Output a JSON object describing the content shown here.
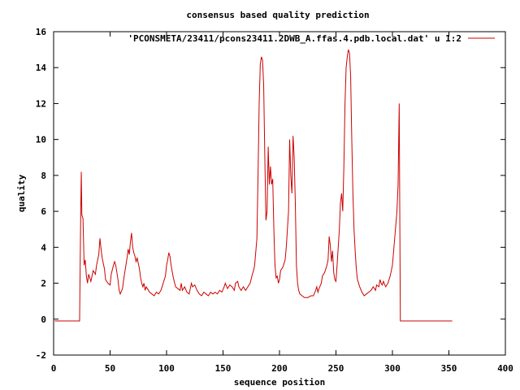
{
  "chart_data": {
    "type": "line",
    "title": "consensus based quality prediction",
    "xlabel": "sequence position",
    "ylabel": "quality",
    "xlim": [
      0,
      400
    ],
    "ylim": [
      -2,
      16
    ],
    "xticks": [
      0,
      50,
      100,
      150,
      200,
      250,
      300,
      350,
      400
    ],
    "yticks": [
      -2,
      0,
      2,
      4,
      6,
      8,
      10,
      12,
      14,
      16
    ],
    "grid": false,
    "legend_position": "top-right",
    "series": [
      {
        "name": "'PCONSMETA/23411/pcons23411.2DWB_A.ffas.4.pdb.local.dat' u 1:2",
        "color": "#cc0000",
        "points": [
          [
            1,
            -0.1
          ],
          [
            23,
            -0.1
          ],
          [
            24,
            6.0
          ],
          [
            24.5,
            8.2
          ],
          [
            25,
            5.8
          ],
          [
            26,
            5.6
          ],
          [
            27,
            3.0
          ],
          [
            28,
            3.3
          ],
          [
            29,
            2.4
          ],
          [
            30,
            2.0
          ],
          [
            31,
            2.5
          ],
          [
            32,
            2.3
          ],
          [
            33,
            2.1
          ],
          [
            35,
            2.7
          ],
          [
            37,
            2.5
          ],
          [
            38,
            3.0
          ],
          [
            40,
            3.6
          ],
          [
            41,
            4.5
          ],
          [
            42,
            3.9
          ],
          [
            43,
            3.4
          ],
          [
            45,
            2.8
          ],
          [
            46,
            2.2
          ],
          [
            48,
            2.0
          ],
          [
            50,
            1.9
          ],
          [
            51,
            2.5
          ],
          [
            53,
            3.0
          ],
          [
            54,
            3.2
          ],
          [
            55,
            3.0
          ],
          [
            57,
            2.2
          ],
          [
            58,
            1.6
          ],
          [
            59,
            1.4
          ],
          [
            61,
            1.7
          ],
          [
            62,
            2.2
          ],
          [
            64,
            3.0
          ],
          [
            65,
            3.4
          ],
          [
            66,
            3.9
          ],
          [
            67,
            3.6
          ],
          [
            68,
            4.3
          ],
          [
            69,
            4.8
          ],
          [
            70,
            4.0
          ],
          [
            71,
            3.7
          ],
          [
            72,
            3.5
          ],
          [
            73,
            3.2
          ],
          [
            74,
            3.4
          ],
          [
            76,
            2.8
          ],
          [
            77,
            2.3
          ],
          [
            78,
            2.0
          ],
          [
            79,
            1.8
          ],
          [
            80,
            2.0
          ],
          [
            81,
            1.6
          ],
          [
            82,
            1.8
          ],
          [
            83,
            1.7
          ],
          [
            85,
            1.5
          ],
          [
            87,
            1.4
          ],
          [
            89,
            1.3
          ],
          [
            91,
            1.5
          ],
          [
            93,
            1.4
          ],
          [
            95,
            1.6
          ],
          [
            97,
            2.0
          ],
          [
            99,
            2.4
          ],
          [
            100,
            3.0
          ],
          [
            101,
            3.3
          ],
          [
            102,
            3.7
          ],
          [
            103,
            3.5
          ],
          [
            104,
            3.0
          ],
          [
            106,
            2.3
          ],
          [
            108,
            1.8
          ],
          [
            110,
            1.7
          ],
          [
            112,
            1.6
          ],
          [
            113,
            2.0
          ],
          [
            114,
            1.6
          ],
          [
            116,
            1.8
          ],
          [
            118,
            1.5
          ],
          [
            120,
            1.4
          ],
          [
            121,
            1.7
          ],
          [
            122,
            2.0
          ],
          [
            123,
            1.8
          ],
          [
            125,
            1.9
          ],
          [
            127,
            1.6
          ],
          [
            129,
            1.4
          ],
          [
            131,
            1.3
          ],
          [
            133,
            1.5
          ],
          [
            135,
            1.4
          ],
          [
            137,
            1.3
          ],
          [
            139,
            1.5
          ],
          [
            141,
            1.4
          ],
          [
            143,
            1.5
          ],
          [
            145,
            1.4
          ],
          [
            147,
            1.6
          ],
          [
            149,
            1.5
          ],
          [
            151,
            1.8
          ],
          [
            152,
            2.0
          ],
          [
            154,
            1.7
          ],
          [
            156,
            1.9
          ],
          [
            158,
            1.8
          ],
          [
            160,
            1.6
          ],
          [
            161,
            2.0
          ],
          [
            163,
            2.1
          ],
          [
            164,
            1.8
          ],
          [
            166,
            1.6
          ],
          [
            168,
            1.8
          ],
          [
            170,
            1.6
          ],
          [
            172,
            1.8
          ],
          [
            174,
            2.0
          ],
          [
            176,
            2.5
          ],
          [
            177,
            2.7
          ],
          [
            178,
            3.0
          ],
          [
            180,
            4.5
          ],
          [
            181,
            8.0
          ],
          [
            182,
            12.0
          ],
          [
            183,
            14.2
          ],
          [
            184,
            14.6
          ],
          [
            185,
            14.4
          ],
          [
            186,
            13.0
          ],
          [
            187,
            9.0
          ],
          [
            188,
            5.5
          ],
          [
            189,
            6.0
          ],
          [
            190,
            9.6
          ],
          [
            191,
            7.5
          ],
          [
            192,
            8.5
          ],
          [
            193,
            7.5
          ],
          [
            194,
            7.8
          ],
          [
            195,
            5.0
          ],
          [
            196,
            3.0
          ],
          [
            197,
            2.3
          ],
          [
            198,
            2.4
          ],
          [
            199,
            2.0
          ],
          [
            200,
            2.2
          ],
          [
            201,
            2.7
          ],
          [
            203,
            2.9
          ],
          [
            205,
            3.3
          ],
          [
            206,
            4.0
          ],
          [
            207,
            5.0
          ],
          [
            208,
            6.0
          ],
          [
            209,
            10.0
          ],
          [
            210,
            8.0
          ],
          [
            211,
            7.0
          ],
          [
            212,
            10.2
          ],
          [
            213,
            9.0
          ],
          [
            214,
            6.5
          ],
          [
            215,
            3.0
          ],
          [
            216,
            2.0
          ],
          [
            217,
            1.6
          ],
          [
            218,
            1.4
          ],
          [
            220,
            1.3
          ],
          [
            222,
            1.2
          ],
          [
            225,
            1.2
          ],
          [
            228,
            1.3
          ],
          [
            230,
            1.3
          ],
          [
            232,
            1.6
          ],
          [
            233,
            1.8
          ],
          [
            234,
            1.5
          ],
          [
            235,
            1.7
          ],
          [
            237,
            2.0
          ],
          [
            238,
            2.4
          ],
          [
            240,
            2.6
          ],
          [
            242,
            3.0
          ],
          [
            243,
            3.3
          ],
          [
            244,
            4.6
          ],
          [
            245,
            4.1
          ],
          [
            246,
            3.2
          ],
          [
            247,
            3.8
          ],
          [
            248,
            2.6
          ],
          [
            249,
            2.2
          ],
          [
            250,
            2.1
          ],
          [
            251,
            3.0
          ],
          [
            253,
            5.0
          ],
          [
            254,
            6.5
          ],
          [
            255,
            7.0
          ],
          [
            256,
            6.0
          ],
          [
            257,
            8.5
          ],
          [
            258,
            12.0
          ],
          [
            259,
            14.0
          ],
          [
            260,
            14.6
          ],
          [
            261,
            15.0
          ],
          [
            262,
            14.8
          ],
          [
            263,
            13.5
          ],
          [
            264,
            10.0
          ],
          [
            265,
            7.0
          ],
          [
            266,
            5.0
          ],
          [
            267,
            3.8
          ],
          [
            268,
            2.8
          ],
          [
            269,
            2.2
          ],
          [
            270,
            2.0
          ],
          [
            271,
            1.8
          ],
          [
            273,
            1.5
          ],
          [
            275,
            1.3
          ],
          [
            277,
            1.4
          ],
          [
            279,
            1.5
          ],
          [
            281,
            1.6
          ],
          [
            282,
            1.7
          ],
          [
            283,
            1.8
          ],
          [
            285,
            1.6
          ],
          [
            286,
            1.9
          ],
          [
            288,
            1.8
          ],
          [
            289,
            2.2
          ],
          [
            290,
            2.0
          ],
          [
            291,
            1.9
          ],
          [
            292,
            2.1
          ],
          [
            294,
            1.8
          ],
          [
            296,
            2.0
          ],
          [
            298,
            2.4
          ],
          [
            300,
            3.0
          ],
          [
            302,
            4.5
          ],
          [
            304,
            6.0
          ],
          [
            305,
            7.5
          ],
          [
            306,
            12.0
          ],
          [
            307,
            -0.1
          ],
          [
            353,
            -0.1
          ]
        ]
      }
    ]
  }
}
